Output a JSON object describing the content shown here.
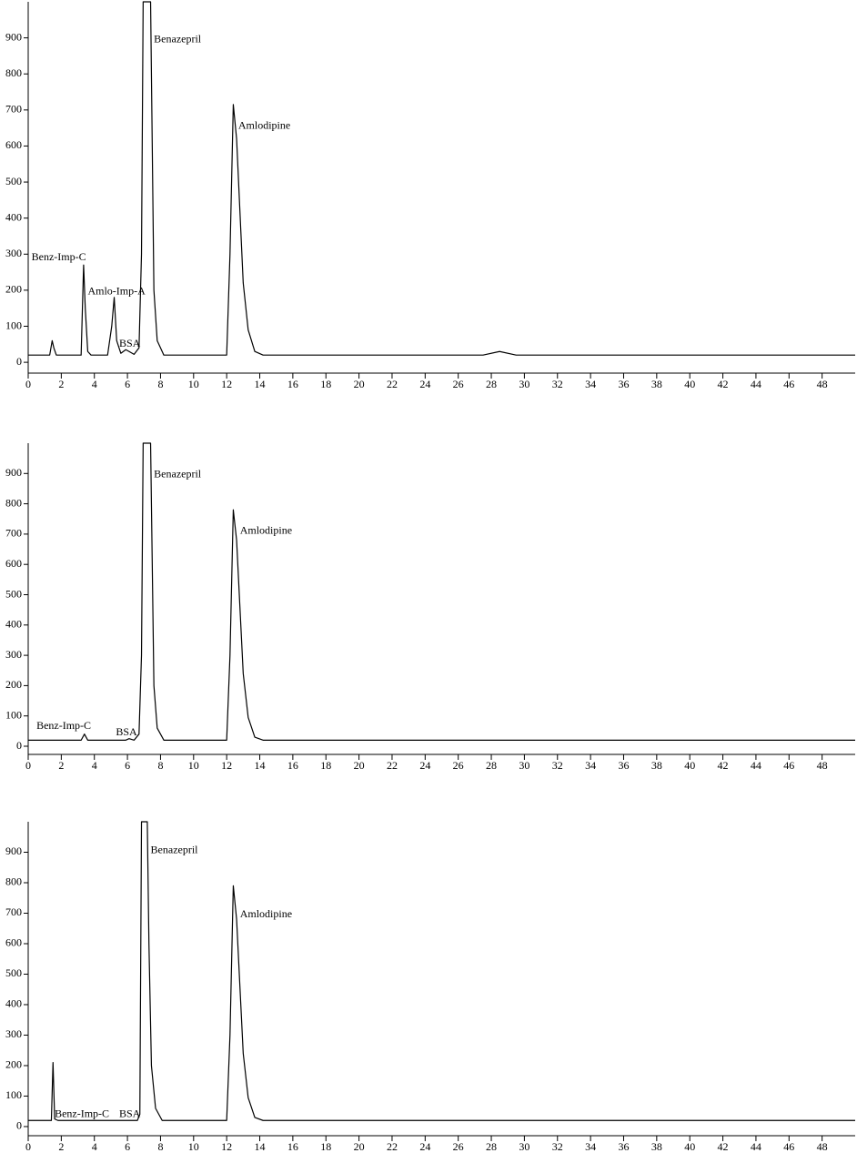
{
  "chart_data": [
    {
      "type": "line",
      "x": [
        0,
        1.3,
        1.45,
        1.55,
        1.7,
        2,
        3.2,
        3.35,
        3.45,
        3.6,
        3.8,
        4.8,
        5.05,
        5.2,
        5.35,
        5.6,
        5.9,
        6.1,
        6.4,
        6.7,
        6.85,
        6.95,
        7.4,
        7.5,
        7.6,
        7.8,
        8.2,
        12.0,
        12.2,
        12.4,
        12.6,
        12.8,
        13.0,
        13.3,
        13.7,
        14.2,
        27.5,
        28.5,
        29.5,
        50
      ],
      "values": [
        20,
        20,
        60,
        40,
        20,
        20,
        20,
        270,
        150,
        30,
        20,
        20,
        100,
        180,
        60,
        25,
        35,
        30,
        22,
        40,
        300,
        1000,
        1000,
        600,
        200,
        60,
        20,
        20,
        300,
        715,
        620,
        420,
        220,
        90,
        30,
        20,
        20,
        30,
        20,
        20
      ],
      "color": "#000000",
      "xlim": [
        0,
        50
      ],
      "ylim": [
        -30,
        1000
      ],
      "xticks": [
        0,
        2,
        4,
        6,
        8,
        10,
        12,
        14,
        16,
        18,
        20,
        22,
        24,
        26,
        28,
        30,
        32,
        34,
        36,
        38,
        40,
        42,
        44,
        46,
        48
      ],
      "yticks": [
        0,
        100,
        200,
        300,
        400,
        500,
        600,
        700,
        800,
        900
      ],
      "annotations": [
        {
          "text": "Benz-Imp-C",
          "x": 0.2,
          "y": 290
        },
        {
          "text": "Amlo-Imp-A",
          "x": 3.6,
          "y": 195
        },
        {
          "text": "BSA",
          "x": 5.5,
          "y": 50
        },
        {
          "text": "Benazepril",
          "x": 7.6,
          "y": 895
        },
        {
          "text": "Amlodipine",
          "x": 12.7,
          "y": 655
        }
      ]
    },
    {
      "type": "line",
      "x": [
        0,
        3.2,
        3.4,
        3.6,
        5.9,
        6.1,
        6.4,
        6.7,
        6.85,
        6.95,
        7.4,
        7.5,
        7.6,
        7.8,
        8.2,
        12.0,
        12.2,
        12.4,
        12.6,
        12.8,
        13.0,
        13.3,
        13.7,
        14.2,
        50
      ],
      "values": [
        20,
        20,
        40,
        20,
        20,
        25,
        20,
        40,
        300,
        1000,
        1000,
        600,
        200,
        60,
        20,
        20,
        300,
        780,
        680,
        460,
        240,
        95,
        30,
        20,
        20
      ],
      "color": "#000000",
      "xlim": [
        0,
        50
      ],
      "ylim": [
        -27,
        1000
      ],
      "xticks": [
        0,
        2,
        4,
        6,
        8,
        10,
        12,
        14,
        16,
        18,
        20,
        22,
        24,
        26,
        28,
        30,
        32,
        34,
        36,
        38,
        40,
        42,
        44,
        46,
        48
      ],
      "yticks": [
        0,
        100,
        200,
        300,
        400,
        500,
        600,
        700,
        800,
        900
      ],
      "annotations": [
        {
          "text": "Benz-Imp-C",
          "x": 0.5,
          "y": 65
        },
        {
          "text": "BSA",
          "x": 5.3,
          "y": 45
        },
        {
          "text": "Benazepril",
          "x": 7.6,
          "y": 895
        },
        {
          "text": "Amlodipine",
          "x": 12.8,
          "y": 710
        }
      ]
    },
    {
      "type": "line",
      "x": [
        0,
        1.4,
        1.5,
        1.6,
        1.8,
        3.4,
        6.6,
        6.75,
        6.85,
        7.2,
        7.3,
        7.45,
        7.7,
        8.1,
        12.0,
        12.2,
        12.4,
        12.6,
        12.8,
        13.0,
        13.3,
        13.7,
        14.2,
        50
      ],
      "values": [
        20,
        20,
        210,
        25,
        20,
        20,
        20,
        40,
        1000,
        1000,
        600,
        200,
        60,
        20,
        20,
        300,
        790,
        680,
        460,
        240,
        95,
        30,
        20,
        20
      ],
      "color": "#000000",
      "xlim": [
        0,
        50
      ],
      "ylim": [
        -30,
        1000
      ],
      "xticks": [
        0,
        2,
        4,
        6,
        8,
        10,
        12,
        14,
        16,
        18,
        20,
        22,
        24,
        26,
        28,
        30,
        32,
        34,
        36,
        38,
        40,
        42,
        44,
        46,
        48
      ],
      "yticks": [
        0,
        100,
        200,
        300,
        400,
        500,
        600,
        700,
        800,
        900
      ],
      "annotations": [
        {
          "text": "Benz-Imp-C",
          "x": 1.6,
          "y": 40
        },
        {
          "text": "BSA",
          "x": 5.5,
          "y": 40
        },
        {
          "text": "Benazepril",
          "x": 7.4,
          "y": 905
        },
        {
          "text": "Amlodipine",
          "x": 12.8,
          "y": 695
        }
      ]
    }
  ]
}
